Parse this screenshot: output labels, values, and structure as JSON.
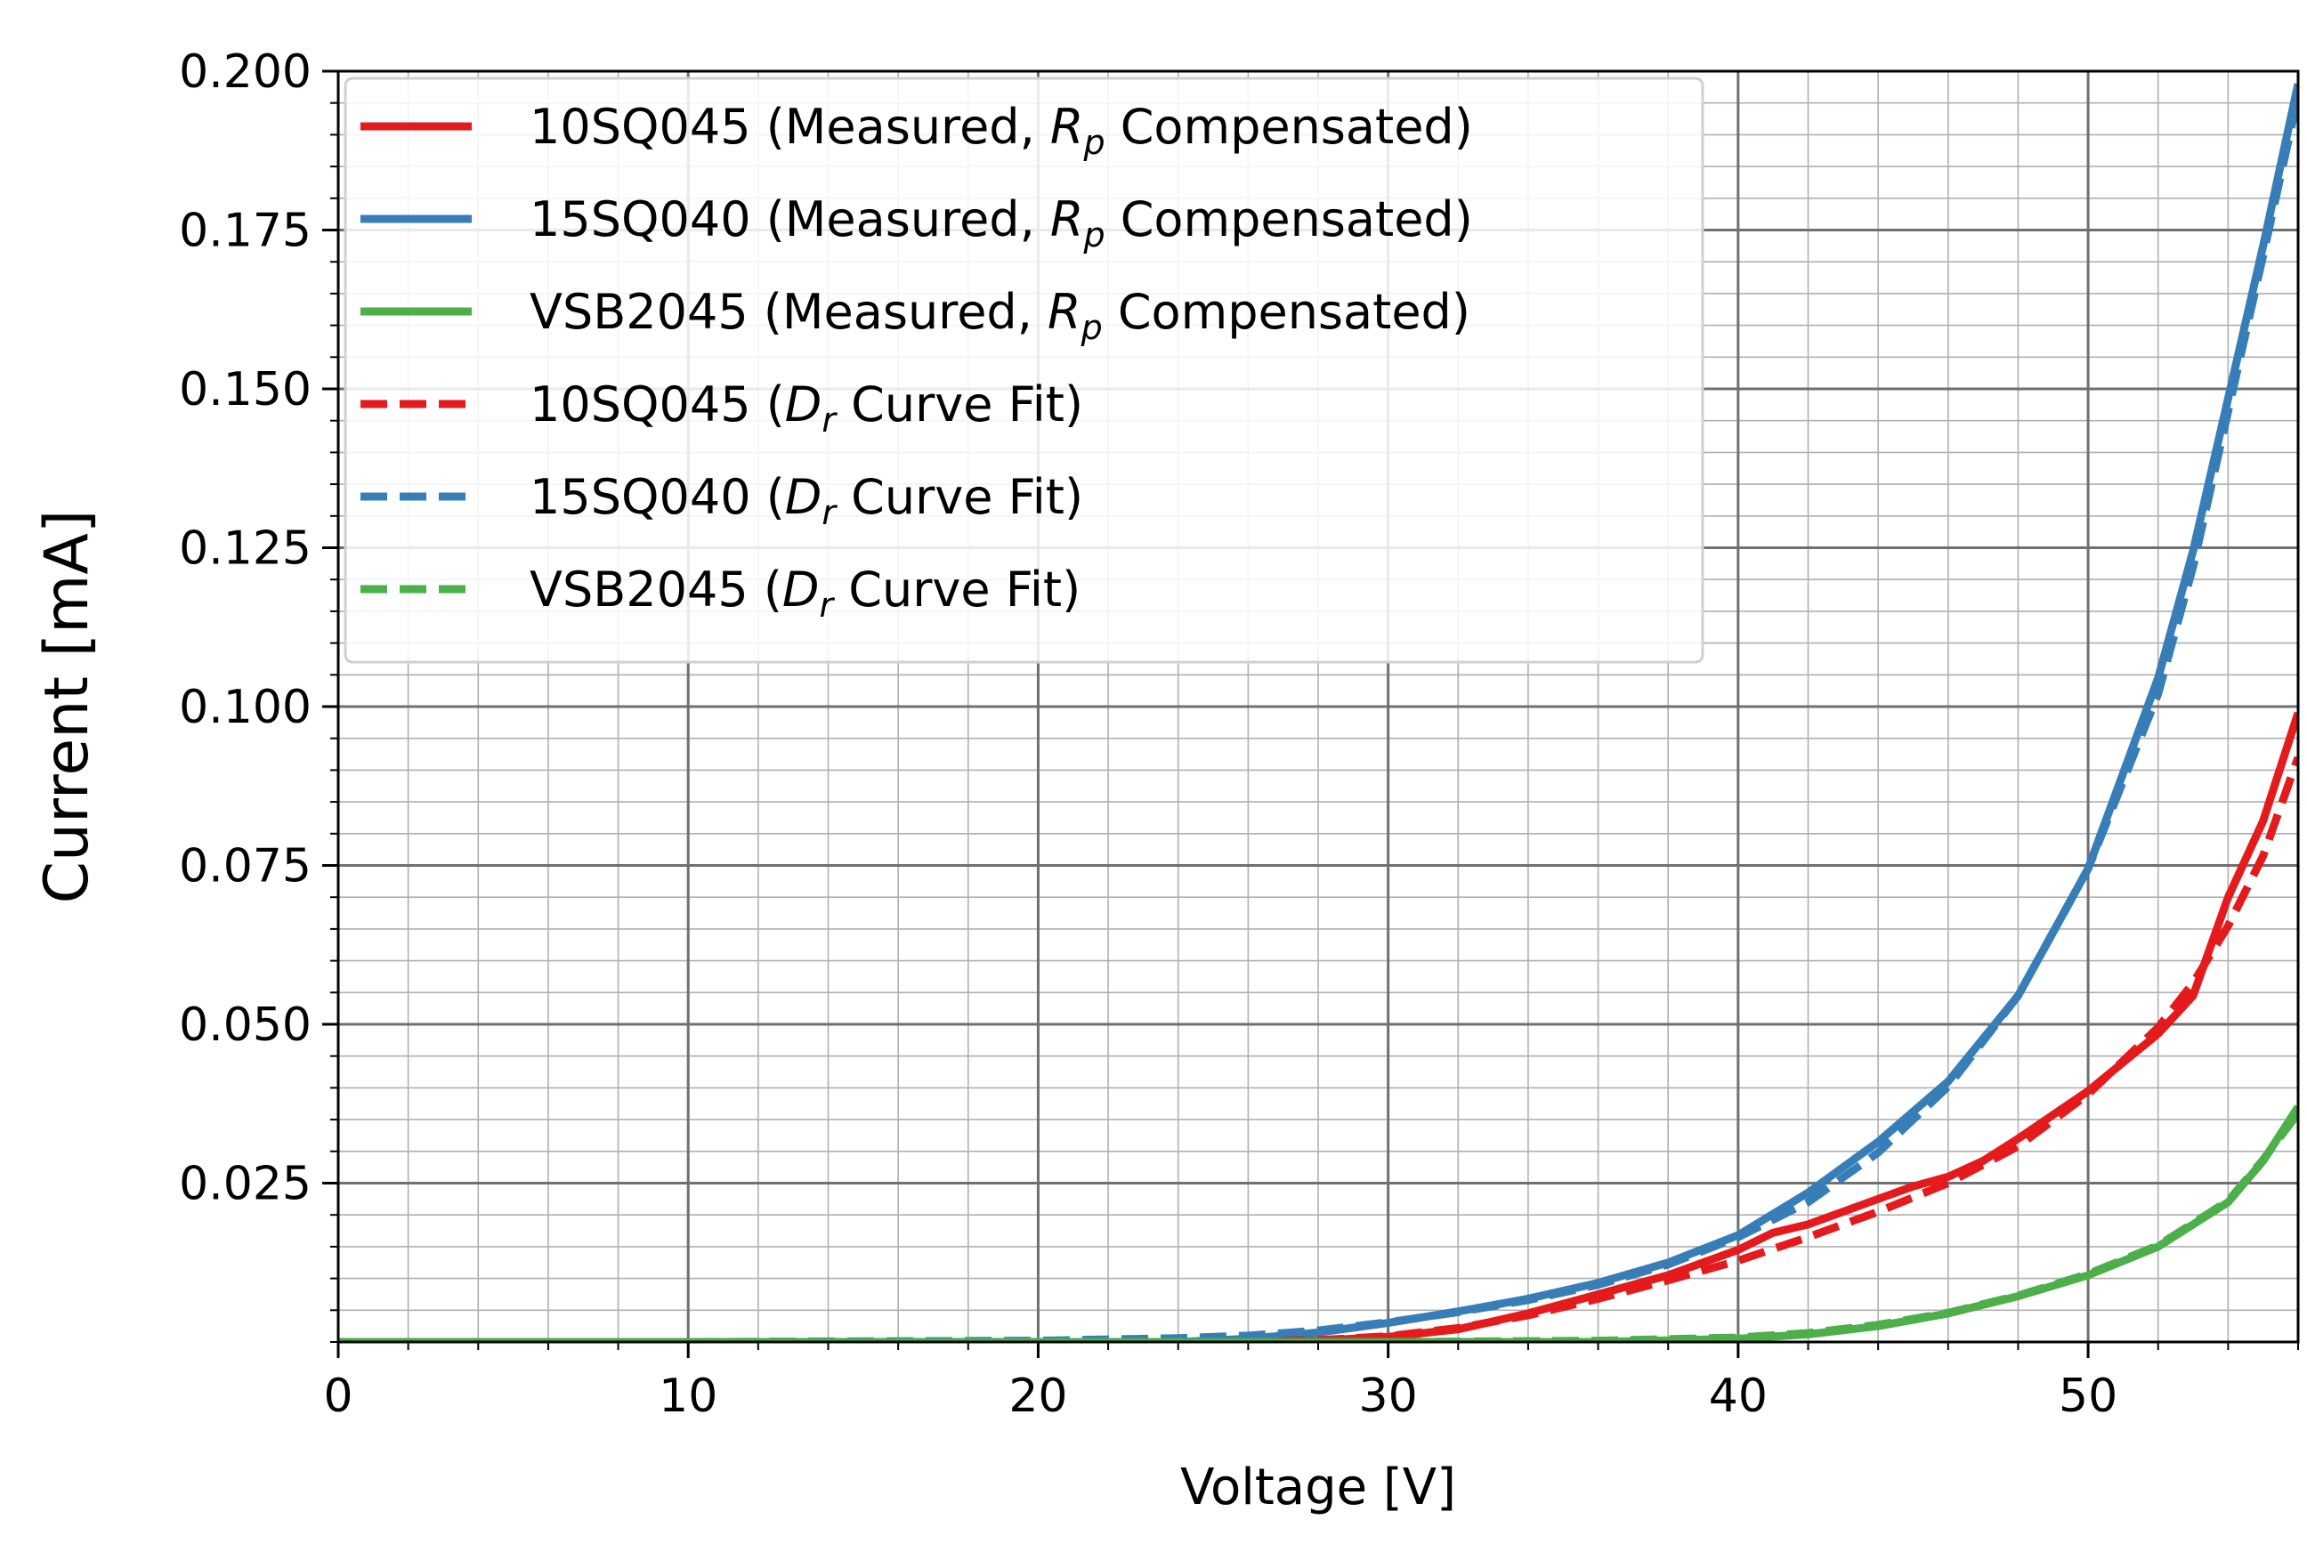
{
  "chart_data": {
    "type": "line",
    "title": "",
    "xlabel": "Voltage [V]",
    "ylabel": "Current [mA]",
    "xlim": [
      0,
      56
    ],
    "ylim": [
      0,
      0.2
    ],
    "x_ticks": [
      0,
      10,
      20,
      30,
      40,
      50
    ],
    "x_tick_labels": [
      "0",
      "10",
      "20",
      "30",
      "40",
      "50"
    ],
    "y_ticks": [
      0.025,
      0.05,
      0.075,
      0.1,
      0.125,
      0.15,
      0.175,
      0.2
    ],
    "y_tick_labels": [
      "0.025",
      "0.050",
      "0.075",
      "0.100",
      "0.125",
      "0.150",
      "0.175",
      "0.200"
    ],
    "x_minor_step": 2,
    "y_minor_step": 0.005,
    "grid": "major and minor",
    "legend_position": "upper-left",
    "series": [
      {
        "name": "10SQ045 (Measured, Rp Compensated)",
        "legend": {
          "prefix": "10SQ045 (Measured, ",
          "sym": "R",
          "sub": "p",
          "suffix": " Compensated)"
        },
        "color": "#e41a1c",
        "dash": "solid",
        "x": [
          0,
          10,
          20,
          26,
          28,
          30,
          32,
          34,
          36,
          38,
          40,
          41,
          42,
          44,
          45,
          46,
          47,
          48,
          50,
          52,
          53,
          54,
          55,
          56
        ],
        "y": [
          0,
          0,
          0,
          0,
          0.0002,
          0.0008,
          0.002,
          0.0045,
          0.0075,
          0.0105,
          0.0145,
          0.0172,
          0.0185,
          0.0225,
          0.0245,
          0.026,
          0.0285,
          0.032,
          0.0395,
          0.0485,
          0.0545,
          0.07,
          0.082,
          0.099
        ]
      },
      {
        "name": "15SQ040 (Measured, Rp Compensated)",
        "legend": {
          "prefix": "15SQ040 (Measured, ",
          "sym": "R",
          "sub": "p",
          "suffix": " Compensated)"
        },
        "color": "#377eb8",
        "dash": "solid",
        "x": [
          0,
          10,
          20,
          24,
          26,
          28,
          30,
          32,
          34,
          36,
          38,
          40,
          42,
          44,
          46,
          48,
          50,
          52,
          53,
          54,
          55,
          56
        ],
        "y": [
          0,
          0,
          0,
          0,
          0.0005,
          0.0015,
          0.003,
          0.0048,
          0.0068,
          0.0093,
          0.0125,
          0.0168,
          0.0235,
          0.0315,
          0.041,
          0.0545,
          0.0745,
          0.1045,
          0.1245,
          0.1485,
          0.1725,
          0.198
        ]
      },
      {
        "name": "VSB2045 (Measured, Rp Compensated)",
        "legend": {
          "prefix": "VSB2045 (Measured, ",
          "sym": "R",
          "sub": "p",
          "suffix": " Compensated)"
        },
        "color": "#4daf4a",
        "dash": "solid",
        "x": [
          0,
          10,
          20,
          30,
          36,
          40,
          42,
          44,
          46,
          48,
          50,
          52,
          54,
          55,
          56
        ],
        "y": [
          0,
          0,
          0,
          0,
          0,
          0.0005,
          0.0012,
          0.0025,
          0.0045,
          0.0072,
          0.0105,
          0.015,
          0.022,
          0.0285,
          0.037
        ]
      },
      {
        "name": "10SQ045 (Dr Curve Fit)",
        "legend": {
          "prefix": "10SQ045 (",
          "sym": "D",
          "sub": "r",
          "suffix": " Curve Fit)"
        },
        "color": "#e41a1c",
        "dash": "dashed",
        "x": [
          0,
          10,
          20,
          26,
          28,
          30,
          32,
          34,
          36,
          38,
          40,
          42,
          44,
          46,
          48,
          50,
          52,
          53,
          54,
          55,
          56
        ],
        "y": [
          0,
          0,
          0,
          0.0001,
          0.0003,
          0.0009,
          0.0022,
          0.0042,
          0.0068,
          0.0097,
          0.0128,
          0.0165,
          0.0205,
          0.025,
          0.0308,
          0.039,
          0.0495,
          0.0565,
          0.0655,
          0.0765,
          0.092
        ]
      },
      {
        "name": "15SQ040 (Dr Curve Fit)",
        "legend": {
          "prefix": "15SQ040 (",
          "sym": "D",
          "sub": "r",
          "suffix": " Curve Fit)"
        },
        "color": "#377eb8",
        "dash": "dashed",
        "x": [
          0,
          10,
          20,
          24,
          26,
          28,
          30,
          32,
          34,
          36,
          38,
          40,
          42,
          44,
          46,
          48,
          50,
          52,
          53,
          54,
          55,
          56
        ],
        "y": [
          0,
          0,
          0.0002,
          0.0006,
          0.001,
          0.0018,
          0.0031,
          0.0047,
          0.0066,
          0.009,
          0.0122,
          0.0165,
          0.022,
          0.0298,
          0.0402,
          0.0545,
          0.0745,
          0.102,
          0.122,
          0.1465,
          0.171,
          0.196
        ]
      },
      {
        "name": "VSB2045 (Dr Curve Fit)",
        "legend": {
          "prefix": "VSB2045 (",
          "sym": "D",
          "sub": "r",
          "suffix": " Curve Fit)"
        },
        "color": "#4daf4a",
        "dash": "dashed",
        "x": [
          0,
          10,
          20,
          30,
          36,
          40,
          42,
          44,
          46,
          48,
          50,
          52,
          54,
          55,
          56
        ],
        "y": [
          0,
          0,
          0,
          0,
          0.0002,
          0.0007,
          0.0014,
          0.0027,
          0.0046,
          0.0073,
          0.0107,
          0.0152,
          0.0222,
          0.0287,
          0.036
        ]
      }
    ]
  }
}
